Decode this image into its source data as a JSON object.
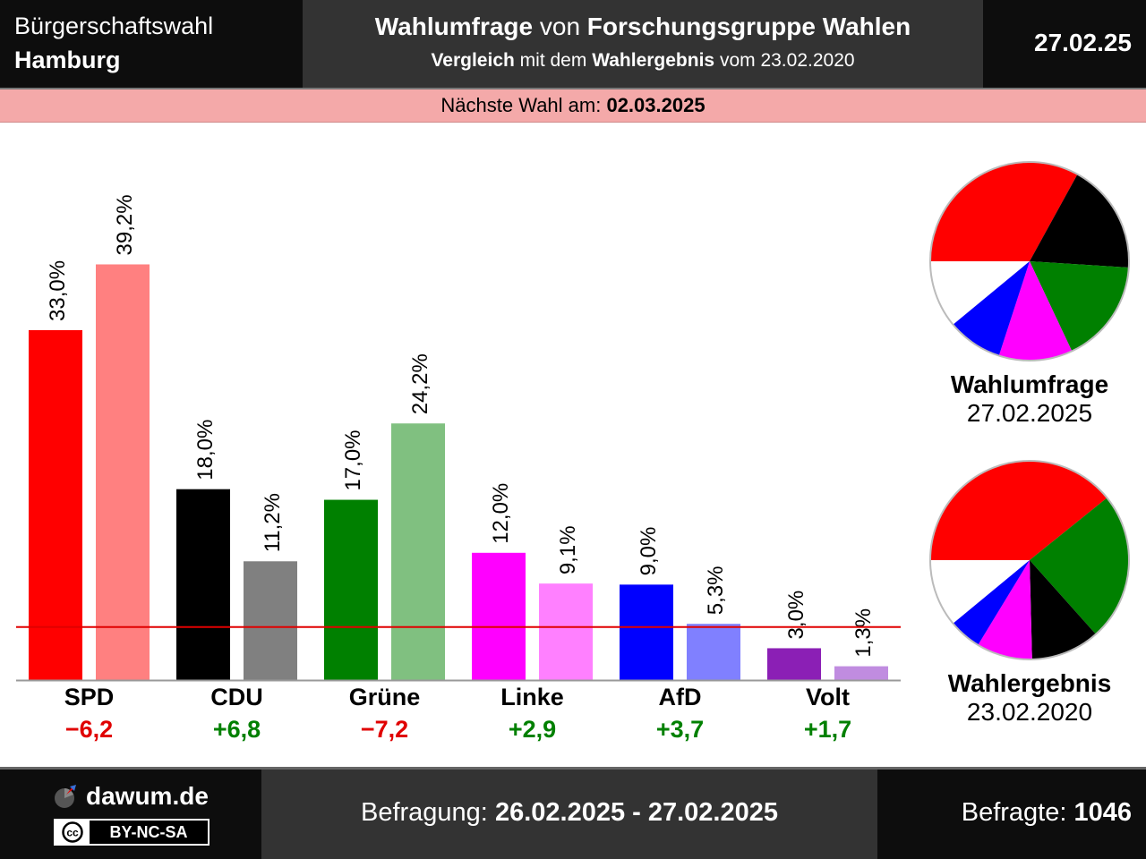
{
  "header": {
    "region_line1": "Bürgerschaftswahl",
    "region_line2": "Hamburg",
    "title_bold1": "Wahlumfrage",
    "title_mid": " von ",
    "title_bold2": "Forschungsgruppe Wahlen",
    "subtitle_bold1": "Vergleich",
    "subtitle_mid": " mit dem ",
    "subtitle_bold2": "Wahlergebnis",
    "subtitle_end": " vom 23.02.2020",
    "date": "27.02.25"
  },
  "next_election": {
    "label": "Nächste Wahl am: ",
    "date": "02.03.2025"
  },
  "chart_data": {
    "type": "bar",
    "categories": [
      "SPD",
      "CDU",
      "Grüne",
      "Linke",
      "AfD",
      "Volt"
    ],
    "series": [
      {
        "name": "Wahlumfrage",
        "values": [
          33.0,
          18.0,
          17.0,
          12.0,
          9.0,
          3.0
        ],
        "labels": [
          "33,0%",
          "18,0%",
          "17,0%",
          "12,0%",
          "9,0%",
          "3,0%"
        ]
      },
      {
        "name": "Wahlergebnis",
        "values": [
          39.2,
          11.2,
          24.2,
          9.1,
          5.3,
          1.3
        ],
        "labels": [
          "39,2%",
          "11,2%",
          "24,2%",
          "9,1%",
          "5,3%",
          "1,3%"
        ]
      }
    ],
    "diffs": [
      "−6,2",
      "+6,8",
      "−7,2",
      "+2,9",
      "+3,7",
      "+1,7"
    ],
    "diff_signs": [
      "neg",
      "pos",
      "neg",
      "pos",
      "pos",
      "pos"
    ],
    "colors_survey": [
      "#ff0000",
      "#000000",
      "#008000",
      "#ff00ff",
      "#0000ff",
      "#8b1fb5"
    ],
    "colors_result": [
      "#ff8080",
      "#808080",
      "#80c080",
      "#ff80ff",
      "#8080ff",
      "#c08ce0"
    ],
    "threshold": 5,
    "threshold_color": "#e00000",
    "ylim": [
      0,
      42
    ]
  },
  "pies": {
    "survey": {
      "title": "Wahlumfrage",
      "date": "27.02.2025",
      "slices": [
        {
          "party": "SPD",
          "value": 33.0,
          "color": "#ff0000"
        },
        {
          "party": "CDU",
          "value": 18.0,
          "color": "#000000"
        },
        {
          "party": "Grüne",
          "value": 17.0,
          "color": "#008000"
        },
        {
          "party": "Linke",
          "value": 12.0,
          "color": "#ff00ff"
        },
        {
          "party": "AfD",
          "value": 9.0,
          "color": "#0000ff"
        }
      ]
    },
    "result": {
      "title": "Wahlergebnis",
      "date": "23.02.2020",
      "slices": [
        {
          "party": "SPD",
          "value": 39.2,
          "color": "#ff0000"
        },
        {
          "party": "Grüne",
          "value": 24.2,
          "color": "#008000"
        },
        {
          "party": "CDU",
          "value": 11.2,
          "color": "#000000"
        },
        {
          "party": "Linke",
          "value": 9.1,
          "color": "#ff00ff"
        },
        {
          "party": "AfD",
          "value": 5.3,
          "color": "#0000ff"
        }
      ]
    }
  },
  "footer": {
    "site": "dawum.de",
    "license": "BY-NC-SA",
    "survey_label": "Befragung: ",
    "survey_period": "26.02.2025 - 27.02.2025",
    "respondents_label": "Befragte: ",
    "respondents": "1046"
  }
}
